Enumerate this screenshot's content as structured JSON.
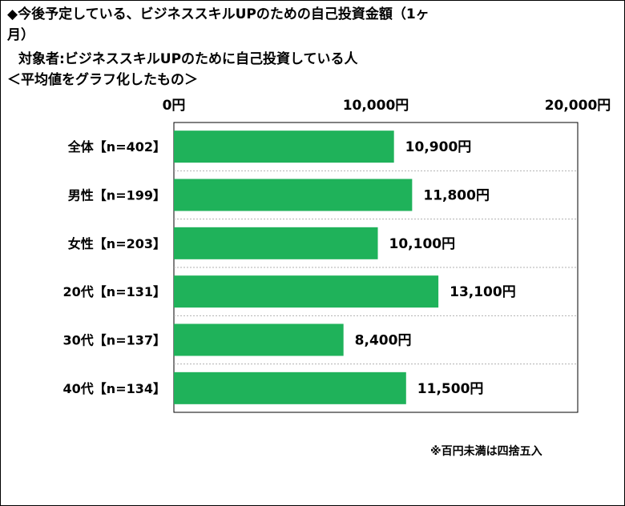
{
  "title_lines": [
    "◆今後予定している、ビジネススキルUPのための自己投資金額（1ヶ",
    "月）",
    "対象者:ビジネススキルUPのために自己投資している人",
    "＜平均値をグラフ化したもの＞"
  ],
  "footnote": "※百円未満は四捨五入",
  "chart_data": {
    "type": "bar",
    "orientation": "horizontal",
    "categories": [
      "全体【n=402】",
      "男性【n=199】",
      "女性【n=203】",
      "20代【n=131】",
      "30代【n=137】",
      "40代【n=134】"
    ],
    "values": [
      10900,
      11800,
      10100,
      13100,
      8400,
      11500
    ],
    "data_labels": [
      "10,900円",
      "11,800円",
      "10,100円",
      "13,100円",
      "8,400円",
      "11,500円"
    ],
    "axis_ticks": [
      0,
      10000,
      20000
    ],
    "axis_tick_labels": [
      "0円",
      "10,000円",
      "20,000円"
    ],
    "xlim": [
      0,
      20000
    ],
    "axis_position": "top",
    "grid": "horizontal dashed separators",
    "bar_color": "#1FB25A"
  }
}
